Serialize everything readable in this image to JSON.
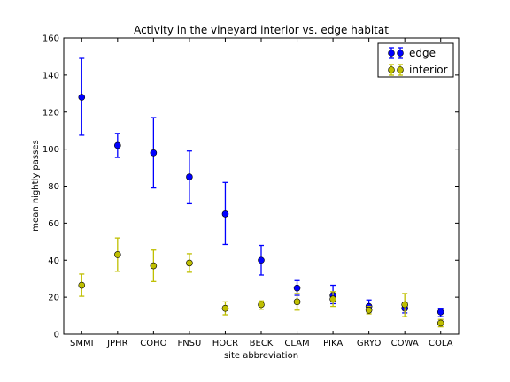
{
  "chart_data": {
    "type": "scatter",
    "title": "Activity in the vineyard interior vs. edge habitat",
    "xlabel": "site abbreviation",
    "ylabel": "mean nightly passes",
    "categories": [
      "SMMI",
      "JPHR",
      "COHO",
      "FNSU",
      "HOCR",
      "BECK",
      "CLAM",
      "PIKA",
      "GRYO",
      "COWA",
      "COLA"
    ],
    "ylim": [
      0,
      160
    ],
    "yticks": [
      0,
      20,
      40,
      60,
      80,
      100,
      120,
      140,
      160
    ],
    "grid": false,
    "legend_position": "top-right",
    "error_bars": true,
    "series": [
      {
        "name": "edge",
        "color": "#0000ff",
        "values": [
          128,
          102,
          98,
          85,
          65,
          40,
          25,
          21,
          15,
          14,
          12
        ],
        "lower": [
          107.5,
          95.5,
          79,
          70.5,
          48.5,
          32,
          21,
          16.5,
          12,
          11.5,
          9.5
        ],
        "upper": [
          149,
          108.5,
          117,
          99,
          82,
          48,
          29,
          26.5,
          18.5,
          17,
          14
        ]
      },
      {
        "name": "interior",
        "color": "#bfbf00",
        "values": [
          26.5,
          43,
          37,
          38.5,
          14,
          16,
          17.5,
          19,
          13,
          16,
          6
        ],
        "lower": [
          20.5,
          34,
          28.5,
          33.5,
          10.5,
          13.5,
          13,
          15,
          11,
          9.5,
          4
        ],
        "upper": [
          32.5,
          52,
          45.5,
          43.5,
          17.5,
          18,
          22,
          23,
          15,
          22,
          8
        ]
      }
    ]
  }
}
